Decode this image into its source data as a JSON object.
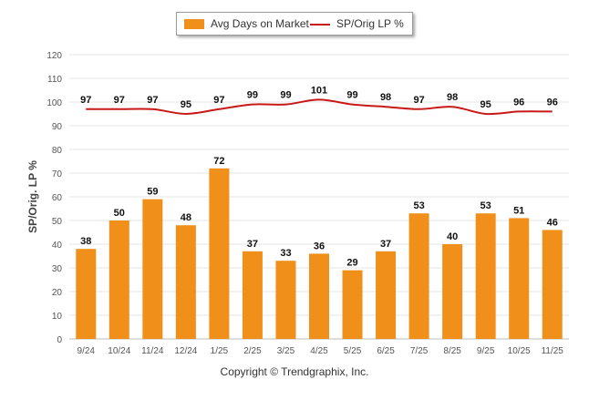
{
  "chart_data": {
    "type": "bar",
    "categories": [
      "9/24",
      "10/24",
      "11/24",
      "12/24",
      "1/25",
      "2/25",
      "3/25",
      "4/25",
      "5/25",
      "6/25",
      "7/25",
      "8/25",
      "9/25",
      "10/25",
      "11/25"
    ],
    "series": [
      {
        "name": "Avg Days on Market",
        "kind": "bar",
        "values": [
          38,
          50,
          59,
          48,
          72,
          37,
          33,
          36,
          29,
          37,
          53,
          40,
          53,
          51,
          46
        ]
      },
      {
        "name": "SP/Orig LP %",
        "kind": "line",
        "values": [
          97,
          97,
          97,
          95,
          97,
          99,
          99,
          101,
          99,
          98,
          97,
          98,
          95,
          96,
          96
        ]
      }
    ],
    "ylabel": "SP/Orig. LP %",
    "xlabel": "",
    "ylim": [
      0,
      120
    ],
    "yticks": [
      0,
      10,
      20,
      30,
      40,
      50,
      60,
      70,
      80,
      90,
      100,
      110,
      120
    ],
    "grid": true,
    "legend_position": "top-center",
    "colors": {
      "bar": "#f0901a",
      "line": "#c81818",
      "grid": "#e4e4e4",
      "axis_text": "#555555"
    }
  },
  "legend": {
    "bar_label": "Avg Days on Market",
    "line_label": "SP/Orig LP %"
  },
  "credit": "Copyright © Trendgraphix, Inc."
}
